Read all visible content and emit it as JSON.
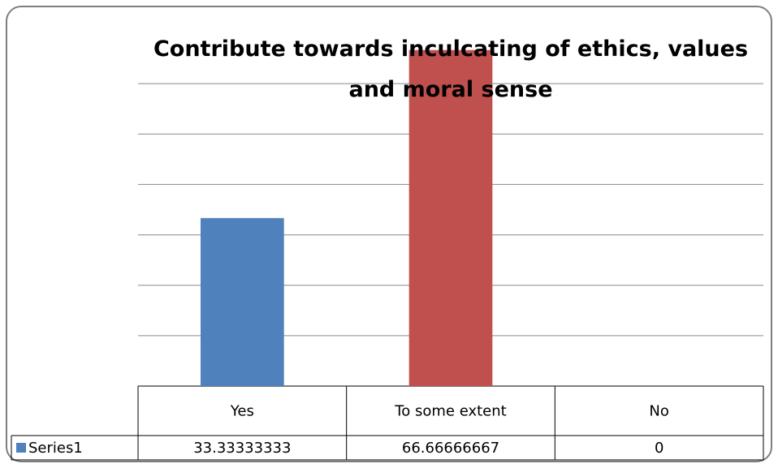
{
  "chart_data": {
    "type": "bar",
    "title": "Contribute towards inculcating of ethics, values and moral sense",
    "categories": [
      "Yes",
      "To some extent",
      "No"
    ],
    "series": [
      {
        "name": "Series1",
        "color": "#4f81bd",
        "values": [
          33.33333333,
          66.66666667,
          0
        ]
      }
    ],
    "colors": [
      "#4f81bd",
      "#c0504d",
      "#9bbb59"
    ],
    "ylim": [
      0,
      70
    ],
    "yticks": [
      10,
      20,
      30,
      40,
      50,
      60
    ],
    "grid": true
  }
}
